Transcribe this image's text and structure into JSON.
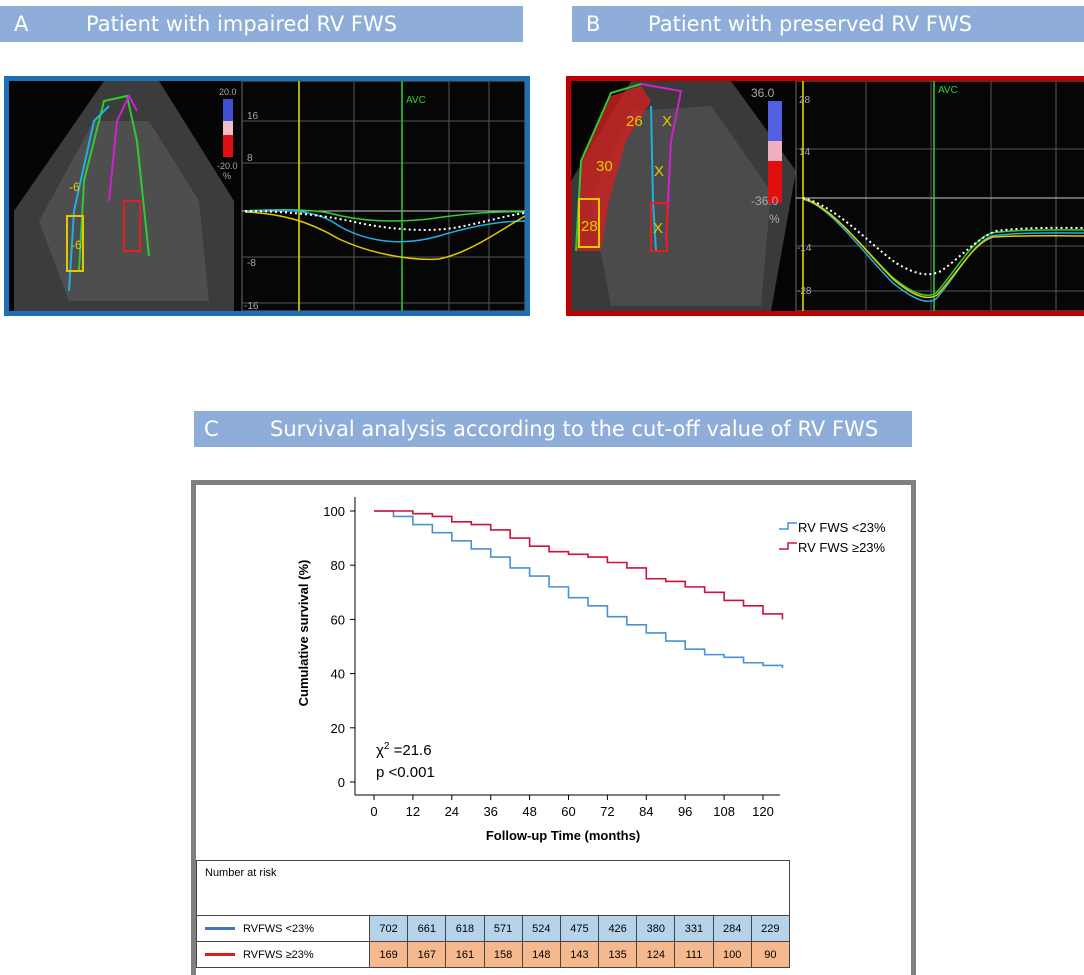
{
  "panel_a": {
    "letter": "A",
    "title": "Patient with impaired RV FWS",
    "scale_top": "20.0",
    "scale_bottom": "-20.0",
    "scale_unit": "%",
    "y_ticks": [
      "16",
      "8",
      "-8",
      "-16"
    ],
    "avc_label": "AVC",
    "segment_values": [
      "-6",
      "-6"
    ],
    "border_color": "#1f6fb5"
  },
  "panel_b": {
    "letter": "B",
    "title": "Patient with preserved RV FWS",
    "scale_top": "36.0",
    "scale_bottom": "-36.0",
    "scale_unit": "%",
    "y_ticks": [
      "28",
      "14",
      "-14",
      "-28"
    ],
    "avc_label": "AVC",
    "segment_values": [
      "26",
      "30",
      "28",
      "X",
      "X",
      "X"
    ],
    "border_color": "#c00000"
  },
  "panel_c": {
    "letter": "C",
    "title": "Survival analysis according to the cut-off value of RV FWS"
  },
  "chart_data": {
    "type": "line",
    "title": "",
    "xlabel": "Follow-up Time (months)",
    "ylabel": "Cumulative survival (%)",
    "xlim": [
      0,
      126
    ],
    "ylim": [
      0,
      100
    ],
    "x_ticks": [
      0,
      12,
      24,
      36,
      48,
      60,
      72,
      84,
      96,
      108,
      120
    ],
    "y_ticks": [
      0,
      20,
      40,
      60,
      80,
      100
    ],
    "legend_position": "top-right",
    "annotation": {
      "chi_label": "χ",
      "chi_sup": "2",
      "chi_value": " =21.6",
      "p_text": "p <0.001"
    },
    "series": [
      {
        "name": "RV FWS <23%",
        "color": "#4a90d9",
        "x": [
          0,
          6,
          12,
          18,
          24,
          30,
          36,
          42,
          48,
          54,
          60,
          66,
          72,
          78,
          84,
          90,
          96,
          102,
          108,
          114,
          120,
          126
        ],
        "y": [
          100,
          98,
          95,
          92,
          89,
          86,
          83,
          79,
          76,
          72,
          68,
          65,
          61,
          58,
          55,
          52,
          49,
          47,
          46,
          44,
          43,
          42
        ]
      },
      {
        "name": "RV FWS ≥23%",
        "color": "#d0103a",
        "x": [
          0,
          6,
          12,
          18,
          24,
          30,
          36,
          42,
          48,
          54,
          60,
          66,
          72,
          78,
          84,
          90,
          96,
          102,
          108,
          114,
          120,
          126
        ],
        "y": [
          100,
          100,
          99,
          98,
          96,
          95,
          93,
          90,
          87,
          85,
          84,
          83,
          81,
          79,
          75,
          74,
          72,
          70,
          67,
          65,
          62,
          60
        ]
      }
    ]
  },
  "risk_table": {
    "header": "Number at risk",
    "rows": [
      {
        "label": "RVFWS  <23%",
        "color": "#4472c4",
        "values": [
          "702",
          "661",
          "618",
          "571",
          "524",
          "475",
          "426",
          "380",
          "331",
          "284",
          "229"
        ]
      },
      {
        "label": "RVFWS  ≥23%",
        "color": "#e31a1c",
        "values": [
          "169",
          "167",
          "161",
          "158",
          "148",
          "143",
          "135",
          "124",
          "111",
          "100",
          "90"
        ]
      }
    ]
  }
}
